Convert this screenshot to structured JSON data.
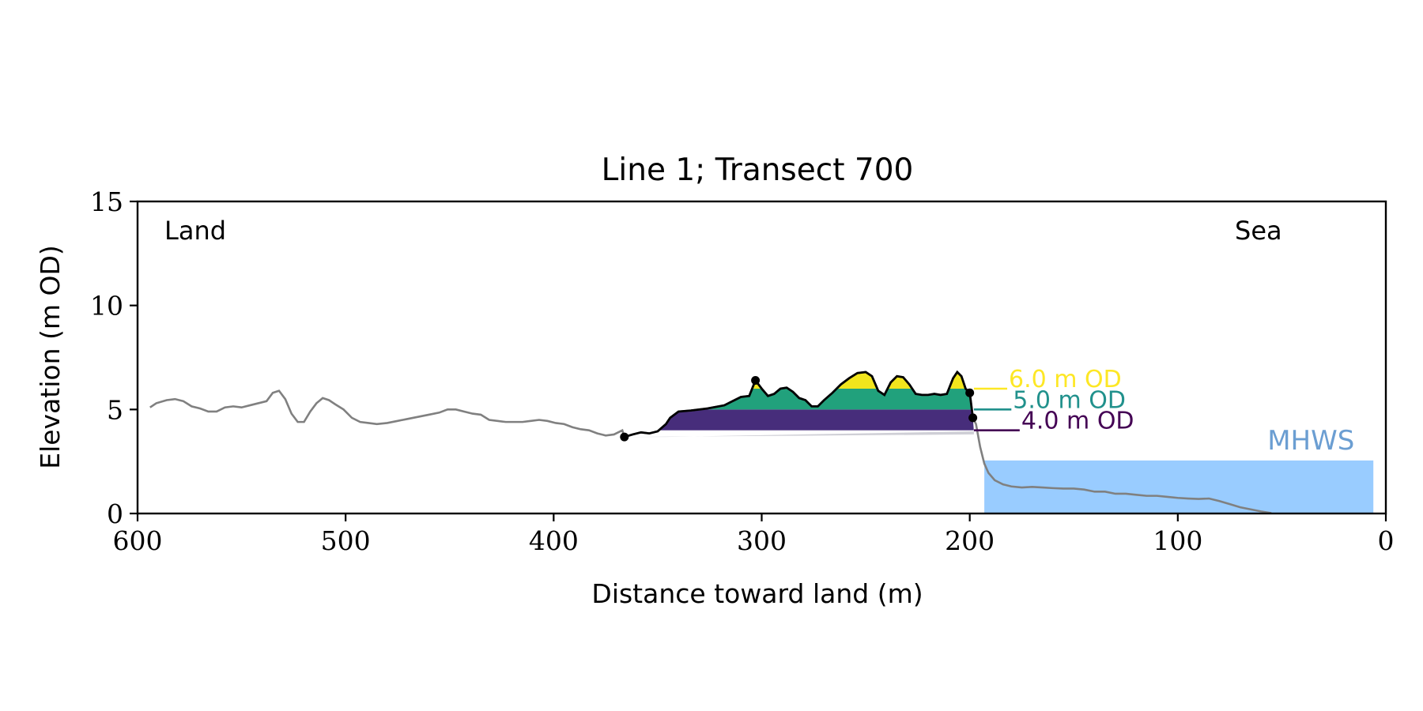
{
  "chart_data": {
    "type": "area",
    "title": "Line 1; Transect 700",
    "xlabel": "Distance toward land (m)",
    "ylabel": "Elevation (m OD)",
    "xlim": [
      600,
      0
    ],
    "ylim": [
      0,
      15
    ],
    "x_ticks": [
      600,
      500,
      400,
      300,
      200,
      100,
      0
    ],
    "x_tick_labels": [
      "600",
      "500",
      "400",
      "300",
      "200",
      "100",
      "0"
    ],
    "y_ticks": [
      0,
      5,
      10,
      15
    ],
    "y_tick_labels": [
      "0",
      "5",
      "10",
      "15"
    ],
    "annotations": {
      "land": "Land",
      "sea": "Sea",
      "mhws": "MHWS"
    },
    "mhws": {
      "elevation": 2.55,
      "x_from": 193,
      "x_to": 6
    },
    "levels": [
      {
        "elevation": 6.0,
        "label": "6.0 m OD",
        "color": "#fde725",
        "x_end": 182
      },
      {
        "elevation": 5.0,
        "label": "5.0 m OD",
        "color": "#21918c",
        "x_end": 180
      },
      {
        "elevation": 4.0,
        "label": "4.0 m OD",
        "color": "#440154",
        "x_end": 176
      }
    ],
    "fills": [
      {
        "name": "4.0 m OD",
        "color": "#472d7b",
        "from": 4.0,
        "to": 5.0
      },
      {
        "name": "5.0 m OD",
        "color": "#21a17c",
        "from": 5.0,
        "to": 6.0
      },
      {
        "name": "6.0 m OD",
        "color": "#f1e51d",
        "from": 6.0,
        "to": 99
      }
    ],
    "dune_x_range": [
      366,
      198
    ],
    "profile": [
      [
        594,
        5.1
      ],
      [
        591,
        5.3
      ],
      [
        586,
        5.45
      ],
      [
        582,
        5.5
      ],
      [
        578,
        5.4
      ],
      [
        574,
        5.15
      ],
      [
        570,
        5.05
      ],
      [
        566,
        4.9
      ],
      [
        562,
        4.9
      ],
      [
        558,
        5.1
      ],
      [
        554,
        5.15
      ],
      [
        550,
        5.1
      ],
      [
        546,
        5.2
      ],
      [
        542,
        5.3
      ],
      [
        538,
        5.4
      ],
      [
        535,
        5.8
      ],
      [
        532,
        5.9
      ],
      [
        529,
        5.5
      ],
      [
        526,
        4.8
      ],
      [
        523,
        4.4
      ],
      [
        520,
        4.4
      ],
      [
        517,
        4.9
      ],
      [
        514,
        5.3
      ],
      [
        511,
        5.55
      ],
      [
        508,
        5.45
      ],
      [
        505,
        5.25
      ],
      [
        501,
        5.0
      ],
      [
        497,
        4.6
      ],
      [
        493,
        4.4
      ],
      [
        489,
        4.35
      ],
      [
        485,
        4.3
      ],
      [
        480,
        4.35
      ],
      [
        475,
        4.45
      ],
      [
        470,
        4.55
      ],
      [
        465,
        4.65
      ],
      [
        460,
        4.75
      ],
      [
        455,
        4.85
      ],
      [
        451,
        5.0
      ],
      [
        447,
        5.0
      ],
      [
        443,
        4.9
      ],
      [
        439,
        4.8
      ],
      [
        435,
        4.75
      ],
      [
        431,
        4.5
      ],
      [
        427,
        4.45
      ],
      [
        423,
        4.4
      ],
      [
        419,
        4.4
      ],
      [
        415,
        4.4
      ],
      [
        411,
        4.45
      ],
      [
        407,
        4.5
      ],
      [
        403,
        4.45
      ],
      [
        399,
        4.35
      ],
      [
        395,
        4.3
      ],
      [
        391,
        4.15
      ],
      [
        387,
        4.05
      ],
      [
        383,
        4.0
      ],
      [
        379,
        3.85
      ],
      [
        375,
        3.75
      ],
      [
        371,
        3.8
      ],
      [
        367,
        4.0
      ],
      [
        363,
        3.9
      ],
      [
        359,
        3.7
      ],
      [
        355,
        3.65
      ],
      [
        351,
        3.7
      ],
      [
        347,
        3.65
      ],
      [
        343,
        3.6
      ],
      [
        339,
        3.6
      ],
      [
        335,
        3.55
      ],
      [
        331,
        3.5
      ],
      [
        327,
        3.55
      ],
      [
        323,
        3.65
      ],
      [
        319,
        3.9
      ],
      [
        315,
        4.3
      ],
      [
        311,
        4.7
      ],
      [
        308,
        4.95
      ],
      [
        305,
        5.05
      ],
      [
        302,
        4.95
      ],
      [
        299,
        4.8
      ],
      [
        296,
        4.7
      ],
      [
        293,
        4.55
      ],
      [
        290,
        4.3
      ],
      [
        287,
        4.0
      ],
      [
        284,
        3.75
      ],
      [
        281,
        3.72
      ],
      [
        278,
        3.68
      ],
      [
        275,
        3.65
      ],
      [
        271,
        3.75
      ],
      [
        268,
        3.7
      ],
      [
        366,
        3.68
      ],
      [
        362,
        3.8
      ],
      [
        358,
        3.9
      ],
      [
        354,
        3.85
      ],
      [
        350,
        3.95
      ],
      [
        346,
        4.3
      ],
      [
        344,
        4.6
      ],
      [
        340,
        4.9
      ],
      [
        334,
        4.95
      ],
      [
        326,
        5.05
      ],
      [
        318,
        5.2
      ],
      [
        314,
        5.4
      ],
      [
        310,
        5.6
      ],
      [
        306,
        5.65
      ],
      [
        303,
        6.4
      ],
      [
        300,
        6.0
      ],
      [
        297,
        5.65
      ],
      [
        294,
        5.75
      ],
      [
        291,
        6.0
      ],
      [
        288,
        6.05
      ],
      [
        285,
        5.85
      ],
      [
        282,
        5.55
      ],
      [
        279,
        5.45
      ],
      [
        276,
        5.15
      ],
      [
        273,
        5.15
      ],
      [
        270,
        5.45
      ],
      [
        266,
        5.8
      ],
      [
        262,
        6.2
      ],
      [
        258,
        6.5
      ],
      [
        254,
        6.75
      ],
      [
        250,
        6.8
      ],
      [
        247,
        6.6
      ],
      [
        244,
        5.9
      ],
      [
        241,
        5.7
      ],
      [
        238,
        6.3
      ],
      [
        235,
        6.6
      ],
      [
        232,
        6.55
      ],
      [
        229,
        6.2
      ],
      [
        226,
        5.75
      ],
      [
        223,
        5.7
      ],
      [
        220,
        5.7
      ],
      [
        217,
        5.75
      ],
      [
        214,
        5.7
      ],
      [
        211,
        5.75
      ],
      [
        208,
        6.5
      ],
      [
        206,
        6.8
      ],
      [
        204,
        6.6
      ],
      [
        202,
        6.0
      ],
      [
        200,
        5.8
      ],
      [
        198.5,
        4.6
      ],
      [
        197,
        4.3
      ],
      [
        195,
        3.2
      ],
      [
        193,
        2.4
      ],
      [
        191,
        1.95
      ],
      [
        188,
        1.6
      ],
      [
        184,
        1.4
      ],
      [
        180,
        1.3
      ],
      [
        175,
        1.25
      ],
      [
        170,
        1.28
      ],
      [
        165,
        1.25
      ],
      [
        160,
        1.22
      ],
      [
        155,
        1.2
      ],
      [
        150,
        1.2
      ],
      [
        145,
        1.15
      ],
      [
        140,
        1.05
      ],
      [
        135,
        1.05
      ],
      [
        130,
        0.95
      ],
      [
        125,
        0.95
      ],
      [
        120,
        0.9
      ],
      [
        115,
        0.85
      ],
      [
        110,
        0.85
      ],
      [
        105,
        0.8
      ],
      [
        100,
        0.75
      ],
      [
        95,
        0.72
      ],
      [
        90,
        0.7
      ],
      [
        85,
        0.72
      ],
      [
        80,
        0.6
      ],
      [
        75,
        0.45
      ],
      [
        70,
        0.3
      ],
      [
        65,
        0.2
      ],
      [
        60,
        0.1
      ],
      [
        55,
        0.02
      ]
    ],
    "dune_points": [
      [
        366,
        3.68
      ],
      [
        303,
        6.4
      ],
      [
        200,
        5.8
      ],
      [
        198.5,
        4.6
      ]
    ]
  }
}
